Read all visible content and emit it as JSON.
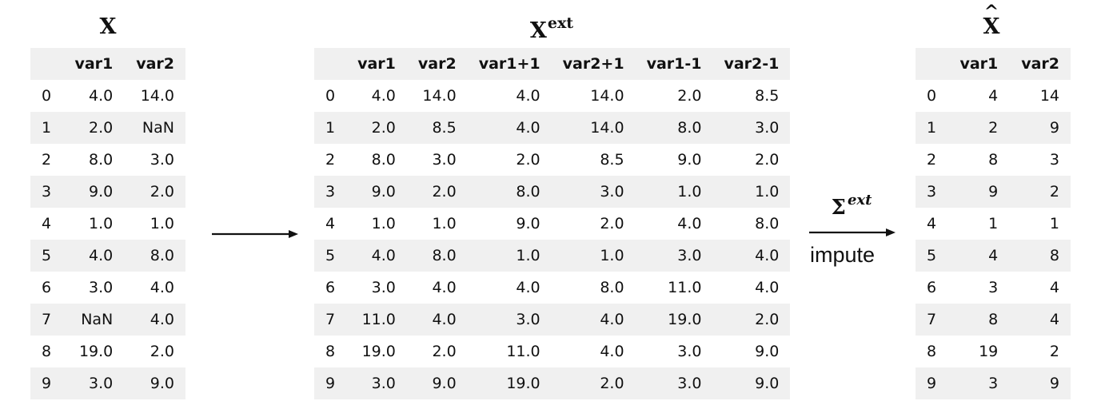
{
  "left_table": {
    "title": "X",
    "columns": [
      "var1",
      "var2"
    ],
    "index": [
      "0",
      "1",
      "2",
      "3",
      "4",
      "5",
      "6",
      "7",
      "8",
      "9"
    ],
    "rows": [
      [
        "4.0",
        "14.0"
      ],
      [
        "2.0",
        "NaN"
      ],
      [
        "8.0",
        "3.0"
      ],
      [
        "9.0",
        "2.0"
      ],
      [
        "1.0",
        "1.0"
      ],
      [
        "4.0",
        "8.0"
      ],
      [
        "3.0",
        "4.0"
      ],
      [
        "NaN",
        "4.0"
      ],
      [
        "19.0",
        "2.0"
      ],
      [
        "3.0",
        "9.0"
      ]
    ]
  },
  "middle_table": {
    "title": "X",
    "title_sup": "ext",
    "columns": [
      "var1",
      "var2",
      "var1+1",
      "var2+1",
      "var1-1",
      "var2-1"
    ],
    "index": [
      "0",
      "1",
      "2",
      "3",
      "4",
      "5",
      "6",
      "7",
      "8",
      "9"
    ],
    "rows": [
      [
        "4.0",
        "14.0",
        "4.0",
        "14.0",
        "2.0",
        "8.5"
      ],
      [
        "2.0",
        "8.5",
        "4.0",
        "14.0",
        "8.0",
        "3.0"
      ],
      [
        "8.0",
        "3.0",
        "2.0",
        "8.5",
        "9.0",
        "2.0"
      ],
      [
        "9.0",
        "2.0",
        "8.0",
        "3.0",
        "1.0",
        "1.0"
      ],
      [
        "1.0",
        "1.0",
        "9.0",
        "2.0",
        "4.0",
        "8.0"
      ],
      [
        "4.0",
        "8.0",
        "1.0",
        "1.0",
        "3.0",
        "4.0"
      ],
      [
        "3.0",
        "4.0",
        "4.0",
        "8.0",
        "11.0",
        "4.0"
      ],
      [
        "11.0",
        "4.0",
        "3.0",
        "4.0",
        "19.0",
        "2.0"
      ],
      [
        "19.0",
        "2.0",
        "11.0",
        "4.0",
        "3.0",
        "9.0"
      ],
      [
        "3.0",
        "9.0",
        "19.0",
        "2.0",
        "3.0",
        "9.0"
      ]
    ]
  },
  "right_table": {
    "title": "X",
    "title_hat": "^",
    "columns": [
      "var1",
      "var2"
    ],
    "index": [
      "0",
      "1",
      "2",
      "3",
      "4",
      "5",
      "6",
      "7",
      "8",
      "9"
    ],
    "rows": [
      [
        "4",
        "14"
      ],
      [
        "2",
        "9"
      ],
      [
        "8",
        "3"
      ],
      [
        "9",
        "2"
      ],
      [
        "1",
        "1"
      ],
      [
        "4",
        "8"
      ],
      [
        "3",
        "4"
      ],
      [
        "8",
        "4"
      ],
      [
        "19",
        "2"
      ],
      [
        "3",
        "9"
      ]
    ]
  },
  "second_arrow": {
    "sigma": "Σ",
    "sigma_sup": "ext",
    "caption": "impute"
  }
}
